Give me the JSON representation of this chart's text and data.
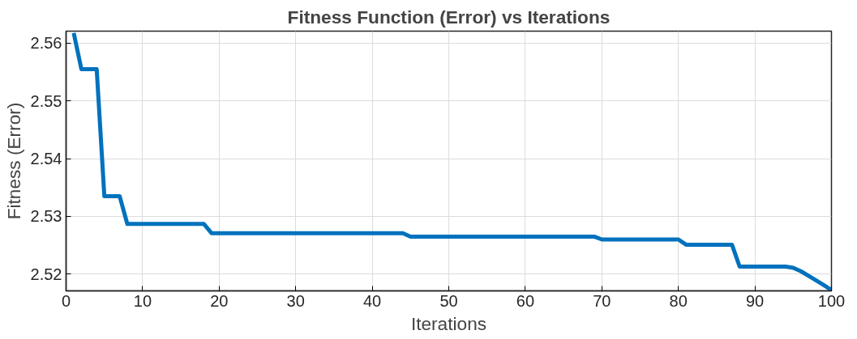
{
  "chart_data": {
    "type": "line",
    "title": "Fitness Function (Error) vs Iterations",
    "xlabel": "Iterations",
    "ylabel": "Fitness (Error)",
    "x": [
      1,
      2,
      3,
      4,
      5,
      6,
      7,
      8,
      9,
      10,
      11,
      12,
      13,
      14,
      15,
      16,
      17,
      18,
      19,
      20,
      21,
      22,
      23,
      24,
      25,
      26,
      27,
      28,
      29,
      30,
      31,
      32,
      33,
      34,
      35,
      36,
      37,
      38,
      39,
      40,
      41,
      42,
      43,
      44,
      45,
      46,
      47,
      48,
      49,
      50,
      51,
      52,
      53,
      54,
      55,
      56,
      57,
      58,
      59,
      60,
      61,
      62,
      63,
      64,
      65,
      66,
      67,
      68,
      69,
      70,
      71,
      72,
      73,
      74,
      75,
      76,
      77,
      78,
      79,
      80,
      81,
      82,
      83,
      84,
      85,
      86,
      87,
      88,
      89,
      90,
      91,
      92,
      93,
      94,
      95,
      96,
      97,
      98,
      99,
      100
    ],
    "series": [
      {
        "color": "#0072bd",
        "values": [
          2.5618,
          2.5555,
          2.5555,
          2.5555,
          2.5335,
          2.5335,
          2.5335,
          2.5287,
          2.5287,
          2.5287,
          2.5287,
          2.5287,
          2.5287,
          2.5287,
          2.5287,
          2.5287,
          2.5287,
          2.5287,
          2.5271,
          2.5271,
          2.5271,
          2.5271,
          2.5271,
          2.5271,
          2.5271,
          2.5271,
          2.5271,
          2.5271,
          2.5271,
          2.5271,
          2.5271,
          2.5271,
          2.5271,
          2.5271,
          2.5271,
          2.5271,
          2.5271,
          2.5271,
          2.5271,
          2.5271,
          2.5271,
          2.5271,
          2.5271,
          2.5271,
          2.5265,
          2.5265,
          2.5265,
          2.5265,
          2.5265,
          2.5265,
          2.5265,
          2.5265,
          2.5265,
          2.5265,
          2.5265,
          2.5265,
          2.5265,
          2.5265,
          2.5265,
          2.5265,
          2.5265,
          2.5265,
          2.5265,
          2.5265,
          2.5265,
          2.5265,
          2.5265,
          2.5265,
          2.5265,
          2.526,
          2.526,
          2.526,
          2.526,
          2.526,
          2.526,
          2.526,
          2.526,
          2.526,
          2.526,
          2.526,
          2.5251,
          2.5251,
          2.5251,
          2.5251,
          2.5251,
          2.5251,
          2.5251,
          2.5213,
          2.5213,
          2.5213,
          2.5213,
          2.5213,
          2.5213,
          2.5213,
          2.5211,
          2.5205,
          2.5197,
          2.5189,
          2.5181,
          2.5172
        ]
      }
    ],
    "xlim": [
      0,
      100
    ],
    "ylim": [
      2.5171,
      2.5621
    ],
    "xticks": [
      0,
      10,
      20,
      30,
      40,
      50,
      60,
      70,
      80,
      90,
      100
    ],
    "yticks": [
      2.52,
      2.53,
      2.54,
      2.55,
      2.56
    ],
    "grid": true,
    "marker": "none",
    "line_style": "solid"
  }
}
